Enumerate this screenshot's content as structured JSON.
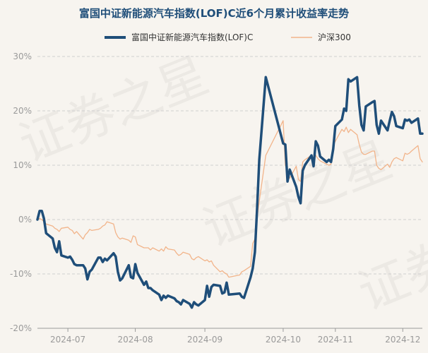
{
  "chart_data": {
    "type": "line",
    "title": "富国中证新能源汽车指数(LOF)C近6个月累计收益率走势",
    "watermark": "证券之星",
    "xlabel": "",
    "ylabel": "",
    "ylim": [
      -20,
      30
    ],
    "y_ticks": [
      "30%",
      "20%",
      "10%",
      "0%",
      "-10%",
      "-20%"
    ],
    "x_tick_labels": [
      "2024-07",
      "2024-08",
      "2024-09",
      "2024-10",
      "2024-11",
      "2024-12"
    ],
    "grid": "horizontal-dashed",
    "legend": "top-center",
    "series": [
      {
        "name": "富国中证新能源汽车指数(LOF)C",
        "color": "#1f4e79",
        "points": [
          [
            "2024-06-17",
            0.0
          ],
          [
            "2024-06-18",
            1.6
          ],
          [
            "2024-06-19",
            1.6
          ],
          [
            "2024-06-20",
            0.2
          ],
          [
            "2024-06-21",
            -2.5
          ],
          [
            "2024-06-24",
            -3.5
          ],
          [
            "2024-06-25",
            -5.2
          ],
          [
            "2024-06-26",
            -6.0
          ],
          [
            "2024-06-27",
            -4.0
          ],
          [
            "2024-06-28",
            -6.6
          ],
          [
            "2024-07-01",
            -7.0
          ],
          [
            "2024-07-02",
            -6.8
          ],
          [
            "2024-07-03",
            -7.4
          ],
          [
            "2024-07-04",
            -8.2
          ],
          [
            "2024-07-05",
            -8.4
          ],
          [
            "2024-07-08",
            -8.4
          ],
          [
            "2024-07-09",
            -9.0
          ],
          [
            "2024-07-10",
            -11.0
          ],
          [
            "2024-07-11",
            -9.6
          ],
          [
            "2024-07-12",
            -9.2
          ],
          [
            "2024-07-15",
            -7.0
          ],
          [
            "2024-07-16",
            -7.0
          ],
          [
            "2024-07-17",
            -7.8
          ],
          [
            "2024-07-18",
            -7.2
          ],
          [
            "2024-07-19",
            -7.5
          ],
          [
            "2024-07-22",
            -6.2
          ],
          [
            "2024-07-23",
            -6.8
          ],
          [
            "2024-07-24",
            -9.6
          ],
          [
            "2024-07-25",
            -11.2
          ],
          [
            "2024-07-26",
            -10.8
          ],
          [
            "2024-07-29",
            -8.4
          ],
          [
            "2024-07-30",
            -10.6
          ],
          [
            "2024-07-31",
            -10.8
          ],
          [
            "2024-08-01",
            -8.2
          ],
          [
            "2024-08-02",
            -9.8
          ],
          [
            "2024-08-05",
            -12.0
          ],
          [
            "2024-08-06",
            -11.4
          ],
          [
            "2024-08-07",
            -12.6
          ],
          [
            "2024-08-08",
            -12.6
          ],
          [
            "2024-08-09",
            -13.0
          ],
          [
            "2024-08-12",
            -13.8
          ],
          [
            "2024-08-13",
            -14.8
          ],
          [
            "2024-08-14",
            -14.0
          ],
          [
            "2024-08-15",
            -14.4
          ],
          [
            "2024-08-16",
            -14.0
          ],
          [
            "2024-08-19",
            -14.5
          ],
          [
            "2024-08-20",
            -15.0
          ],
          [
            "2024-08-21",
            -15.2
          ],
          [
            "2024-08-22",
            -15.6
          ],
          [
            "2024-08-23",
            -14.8
          ],
          [
            "2024-08-26",
            -15.5
          ],
          [
            "2024-08-27",
            -16.2
          ],
          [
            "2024-08-28",
            -15.2
          ],
          [
            "2024-08-29",
            -15.6
          ],
          [
            "2024-08-30",
            -15.8
          ],
          [
            "2024-09-02",
            -14.8
          ],
          [
            "2024-09-03",
            -12.2
          ],
          [
            "2024-09-04",
            -14.2
          ],
          [
            "2024-09-05",
            -12.4
          ],
          [
            "2024-09-06",
            -12.0
          ],
          [
            "2024-09-09",
            -12.2
          ],
          [
            "2024-09-10",
            -13.6
          ],
          [
            "2024-09-11",
            -13.4
          ],
          [
            "2024-09-12",
            -11.6
          ],
          [
            "2024-09-13",
            -13.8
          ],
          [
            "2024-09-18",
            -13.6
          ],
          [
            "2024-09-19",
            -14.2
          ],
          [
            "2024-09-20",
            -14.4
          ],
          [
            "2024-09-23",
            -10.6
          ],
          [
            "2024-09-24",
            -9.0
          ],
          [
            "2024-09-25",
            -6.0
          ],
          [
            "2024-09-26",
            2.0
          ],
          [
            "2024-09-27",
            11.0
          ],
          [
            "2024-09-30",
            26.2
          ],
          [
            "2024-10-08",
            14.0
          ],
          [
            "2024-10-09",
            13.8
          ],
          [
            "2024-10-10",
            7.0
          ],
          [
            "2024-10-11",
            9.2
          ],
          [
            "2024-10-14",
            6.0
          ],
          [
            "2024-10-15",
            4.2
          ],
          [
            "2024-10-16",
            3.0
          ],
          [
            "2024-10-17",
            9.0
          ],
          [
            "2024-10-18",
            10.0
          ],
          [
            "2024-10-21",
            11.8
          ],
          [
            "2024-10-22",
            9.8
          ],
          [
            "2024-10-23",
            14.4
          ],
          [
            "2024-10-24",
            13.6
          ],
          [
            "2024-10-25",
            11.6
          ],
          [
            "2024-10-28",
            10.6
          ],
          [
            "2024-10-29",
            11.0
          ],
          [
            "2024-10-30",
            10.6
          ],
          [
            "2024-10-31",
            13.0
          ],
          [
            "2024-11-01",
            17.2
          ],
          [
            "2024-11-04",
            18.4
          ],
          [
            "2024-11-05",
            20.4
          ],
          [
            "2024-11-06",
            20.0
          ],
          [
            "2024-11-07",
            25.8
          ],
          [
            "2024-11-08",
            25.4
          ],
          [
            "2024-11-11",
            26.2
          ],
          [
            "2024-11-12",
            21.0
          ],
          [
            "2024-11-13",
            17.4
          ],
          [
            "2024-11-14",
            16.4
          ],
          [
            "2024-11-15",
            20.8
          ],
          [
            "2024-11-18",
            21.6
          ],
          [
            "2024-11-19",
            21.8
          ],
          [
            "2024-11-20",
            17.4
          ],
          [
            "2024-11-21",
            15.8
          ],
          [
            "2024-11-22",
            18.2
          ],
          [
            "2024-11-25",
            16.4
          ],
          [
            "2024-11-26",
            18.2
          ],
          [
            "2024-11-27",
            19.8
          ],
          [
            "2024-11-28",
            19.0
          ],
          [
            "2024-11-29",
            17.2
          ],
          [
            "2024-12-02",
            16.8
          ],
          [
            "2024-12-03",
            18.4
          ],
          [
            "2024-12-04",
            18.2
          ],
          [
            "2024-12-05",
            18.4
          ],
          [
            "2024-12-06",
            17.8
          ],
          [
            "2024-12-09",
            18.6
          ],
          [
            "2024-12-10",
            15.8
          ],
          [
            "2024-12-11",
            15.8
          ]
        ]
      },
      {
        "name": "沪深300",
        "color": "#f2b48a",
        "points": [
          [
            "2024-06-17",
            0.0
          ],
          [
            "2024-06-18",
            0.2
          ],
          [
            "2024-06-19",
            0.0
          ],
          [
            "2024-06-20",
            -0.4
          ],
          [
            "2024-06-21",
            -0.8
          ],
          [
            "2024-06-24",
            -1.2
          ],
          [
            "2024-06-25",
            -1.6
          ],
          [
            "2024-06-26",
            -1.8
          ],
          [
            "2024-06-27",
            -2.2
          ],
          [
            "2024-06-28",
            -1.6
          ],
          [
            "2024-07-01",
            -1.4
          ],
          [
            "2024-07-02",
            -1.8
          ],
          [
            "2024-07-03",
            -2.0
          ],
          [
            "2024-07-04",
            -2.6
          ],
          [
            "2024-07-05",
            -2.2
          ],
          [
            "2024-07-08",
            -3.6
          ],
          [
            "2024-07-09",
            -2.8
          ],
          [
            "2024-07-10",
            -2.4
          ],
          [
            "2024-07-11",
            -1.8
          ],
          [
            "2024-07-12",
            -2.0
          ],
          [
            "2024-07-15",
            -1.8
          ],
          [
            "2024-07-16",
            -1.6
          ],
          [
            "2024-07-17",
            -1.2
          ],
          [
            "2024-07-18",
            -1.0
          ],
          [
            "2024-07-19",
            -0.4
          ],
          [
            "2024-07-22",
            -0.8
          ],
          [
            "2024-07-23",
            -2.4
          ],
          [
            "2024-07-24",
            -3.2
          ],
          [
            "2024-07-25",
            -3.6
          ],
          [
            "2024-07-26",
            -3.4
          ],
          [
            "2024-07-29",
            -3.8
          ],
          [
            "2024-07-30",
            -4.2
          ],
          [
            "2024-07-31",
            -3.0
          ],
          [
            "2024-08-01",
            -3.2
          ],
          [
            "2024-08-02",
            -4.6
          ],
          [
            "2024-08-05",
            -5.2
          ],
          [
            "2024-08-06",
            -5.2
          ],
          [
            "2024-08-07",
            -5.2
          ],
          [
            "2024-08-08",
            -5.6
          ],
          [
            "2024-08-09",
            -5.2
          ],
          [
            "2024-08-12",
            -5.8
          ],
          [
            "2024-08-13",
            -5.4
          ],
          [
            "2024-08-14",
            -5.8
          ],
          [
            "2024-08-15",
            -5.0
          ],
          [
            "2024-08-16",
            -5.4
          ],
          [
            "2024-08-19",
            -5.6
          ],
          [
            "2024-08-20",
            -6.2
          ],
          [
            "2024-08-21",
            -6.6
          ],
          [
            "2024-08-22",
            -6.4
          ],
          [
            "2024-08-23",
            -6.0
          ],
          [
            "2024-08-26",
            -6.4
          ],
          [
            "2024-08-27",
            -7.2
          ],
          [
            "2024-08-28",
            -7.4
          ],
          [
            "2024-08-29",
            -7.0
          ],
          [
            "2024-08-30",
            -6.8
          ],
          [
            "2024-09-02",
            -7.6
          ],
          [
            "2024-09-03",
            -7.4
          ],
          [
            "2024-09-04",
            -7.8
          ],
          [
            "2024-09-05",
            -7.6
          ],
          [
            "2024-09-06",
            -8.4
          ],
          [
            "2024-09-09",
            -9.6
          ],
          [
            "2024-09-10",
            -9.4
          ],
          [
            "2024-09-11",
            -9.8
          ],
          [
            "2024-09-12",
            -10.0
          ],
          [
            "2024-09-13",
            -10.6
          ],
          [
            "2024-09-18",
            -10.2
          ],
          [
            "2024-09-19",
            -9.6
          ],
          [
            "2024-09-20",
            -9.4
          ],
          [
            "2024-09-23",
            -8.6
          ],
          [
            "2024-09-24",
            -4.4
          ],
          [
            "2024-09-25",
            -3.6
          ],
          [
            "2024-09-26",
            0.2
          ],
          [
            "2024-09-27",
            3.4
          ],
          [
            "2024-09-30",
            11.8
          ],
          [
            "2024-10-08",
            18.2
          ],
          [
            "2024-10-09",
            10.0
          ],
          [
            "2024-10-10",
            9.0
          ],
          [
            "2024-10-11",
            7.6
          ],
          [
            "2024-10-14",
            9.8
          ],
          [
            "2024-10-15",
            7.4
          ],
          [
            "2024-10-16",
            7.0
          ],
          [
            "2024-10-17",
            10.6
          ],
          [
            "2024-10-18",
            11.0
          ],
          [
            "2024-10-21",
            11.8
          ],
          [
            "2024-10-22",
            11.0
          ],
          [
            "2024-10-23",
            11.8
          ],
          [
            "2024-10-24",
            11.2
          ],
          [
            "2024-10-25",
            10.8
          ],
          [
            "2024-10-28",
            10.2
          ],
          [
            "2024-10-29",
            10.0
          ],
          [
            "2024-10-30",
            10.2
          ],
          [
            "2024-10-31",
            13.6
          ],
          [
            "2024-11-01",
            14.4
          ],
          [
            "2024-11-04",
            16.6
          ],
          [
            "2024-11-05",
            16.2
          ],
          [
            "2024-11-06",
            17.0
          ],
          [
            "2024-11-07",
            16.0
          ],
          [
            "2024-11-08",
            16.6
          ],
          [
            "2024-11-11",
            15.6
          ],
          [
            "2024-11-12",
            13.8
          ],
          [
            "2024-11-13",
            12.4
          ],
          [
            "2024-11-14",
            12.0
          ],
          [
            "2024-11-15",
            12.0
          ],
          [
            "2024-11-18",
            12.6
          ],
          [
            "2024-11-19",
            12.6
          ],
          [
            "2024-11-20",
            10.0
          ],
          [
            "2024-11-21",
            9.4
          ],
          [
            "2024-11-22",
            9.2
          ],
          [
            "2024-11-25",
            10.2
          ],
          [
            "2024-11-26",
            9.6
          ],
          [
            "2024-11-27",
            10.6
          ],
          [
            "2024-11-28",
            11.2
          ],
          [
            "2024-11-29",
            11.4
          ],
          [
            "2024-12-02",
            10.8
          ],
          [
            "2024-12-03",
            12.2
          ],
          [
            "2024-12-04",
            12.0
          ],
          [
            "2024-12-05",
            12.2
          ],
          [
            "2024-12-06",
            12.6
          ],
          [
            "2024-12-09",
            13.6
          ],
          [
            "2024-12-10",
            11.2
          ],
          [
            "2024-12-11",
            10.6
          ]
        ]
      }
    ]
  }
}
